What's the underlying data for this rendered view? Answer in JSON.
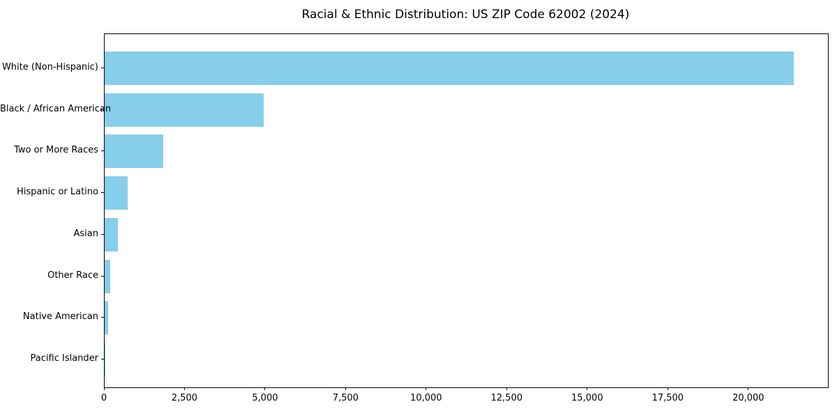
{
  "chart_data": {
    "type": "bar",
    "orientation": "horizontal",
    "title": "Racial & Ethnic Distribution: US ZIP Code 62002 (2024)",
    "categories": [
      "White (Non-Hispanic)",
      "Black / African American",
      "Two or More Races",
      "Hispanic or Latino",
      "Asian",
      "Other Race",
      "Native American",
      "Pacific Islander"
    ],
    "values": [
      21380,
      4930,
      1820,
      715,
      410,
      175,
      110,
      10
    ],
    "xlabel": "",
    "ylabel": "",
    "xlim": [
      0,
      22450
    ],
    "x_ticks": [
      0,
      2500,
      5000,
      7500,
      10000,
      12500,
      15000,
      17500,
      20000
    ],
    "x_tick_labels": [
      "0",
      "2,500",
      "5,000",
      "7,500",
      "10,000",
      "12,500",
      "15,000",
      "17,500",
      "20,000"
    ],
    "bar_color": "#87CEEB",
    "axis_color": "#000000",
    "grid": false,
    "legend": "none"
  }
}
